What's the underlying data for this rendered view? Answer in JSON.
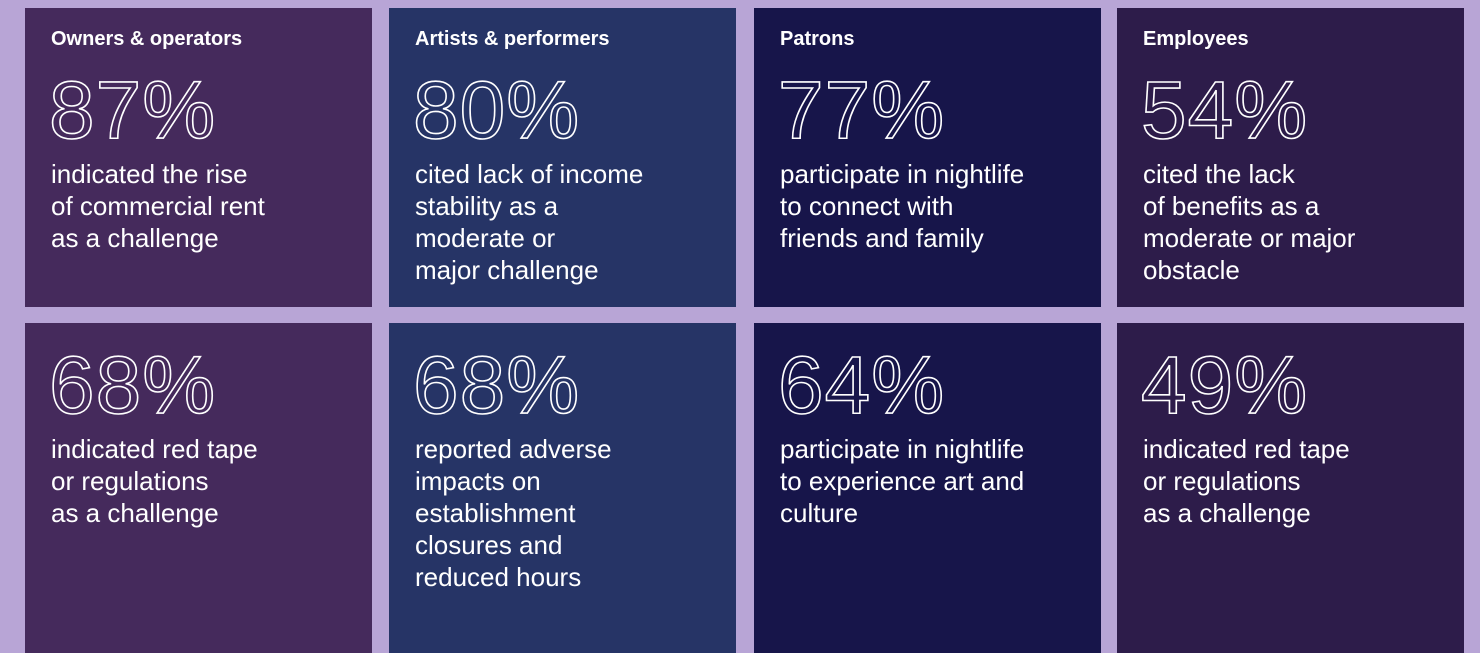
{
  "columns": [
    {
      "heading": "Owners & operators",
      "stats": [
        {
          "value": "87%",
          "lines": [
            "indicated the rise",
            "of commercial rent",
            "as a challenge"
          ]
        },
        {
          "value": "68%",
          "lines": [
            "indicated red tape",
            "or regulations",
            "as a challenge"
          ]
        }
      ]
    },
    {
      "heading": "Artists & performers",
      "stats": [
        {
          "value": "80%",
          "lines": [
            "cited lack of income",
            "stability as a",
            "moderate or",
            "major challenge"
          ]
        },
        {
          "value": "68%",
          "lines": [
            "reported adverse",
            "impacts on",
            "establishment",
            "closures and",
            "reduced hours"
          ]
        }
      ]
    },
    {
      "heading": "Patrons",
      "stats": [
        {
          "value": "77%",
          "lines": [
            "participate in nightlife",
            "to connect with",
            "friends and family"
          ]
        },
        {
          "value": "64%",
          "lines": [
            "participate in nightlife",
            "to experience art and",
            "culture"
          ]
        }
      ]
    },
    {
      "heading": "Employees",
      "stats": [
        {
          "value": "54%",
          "lines": [
            "cited the lack",
            "of benefits as a",
            "moderate or major",
            "obstacle"
          ]
        },
        {
          "value": "49%",
          "lines": [
            "indicated red tape",
            "or regulations",
            "as a challenge"
          ]
        }
      ]
    }
  ]
}
